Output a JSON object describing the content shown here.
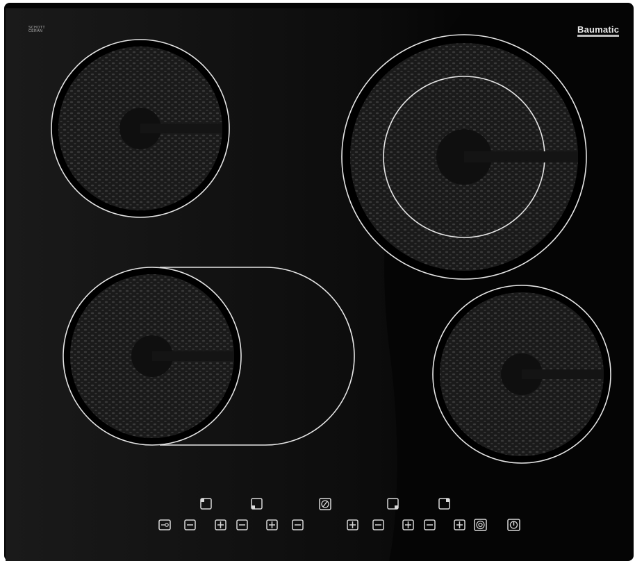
{
  "brand": {
    "name": "Baumatic",
    "glass_line1": "SCHOTT",
    "glass_line2": "CERAN"
  },
  "colors": {
    "glass": "#050505",
    "zone_ring": "#e6e6e6",
    "heating_coil": "#2c2c2c",
    "control_icon": "#d9d9d9"
  },
  "zones": [
    {
      "id": "rear-left",
      "type": "single"
    },
    {
      "id": "rear-right",
      "type": "dual-circle"
    },
    {
      "id": "front-left",
      "type": "extended-oval"
    },
    {
      "id": "front-right",
      "type": "single"
    }
  ],
  "controls": {
    "zone_selectors": [
      "zone-select-front-left",
      "zone-select-rear-left",
      "timer",
      "zone-select-rear-right",
      "zone-select-front-right"
    ],
    "bottom_row": [
      "lock-icon",
      "minus-icon",
      "plus-icon",
      "minus-icon",
      "plus-icon",
      "minus-icon",
      "plus-icon",
      "minus-icon",
      "plus-icon",
      "minus-icon",
      "plus-icon",
      "dual-zone-icon",
      "power-icon"
    ]
  }
}
